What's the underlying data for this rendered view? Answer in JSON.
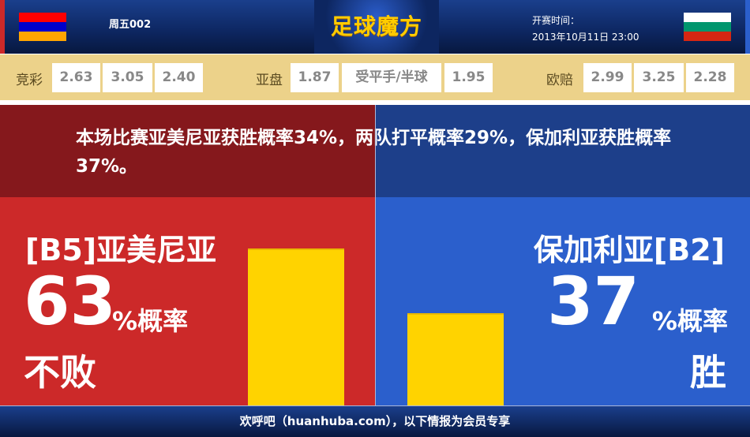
{
  "header": {
    "match_no": "周五002",
    "logo_text": "足球魔方",
    "time_label": "开赛时间：",
    "time_value": "2013年10月11日 23:00"
  },
  "flags": {
    "home": [
      "#ff0000",
      "#0000cc",
      "#ffa500"
    ],
    "away": [
      "#ffffff",
      "#00966e",
      "#d62612"
    ]
  },
  "odds": {
    "jingcai": {
      "label": "竞彩",
      "values": [
        "2.63",
        "3.05",
        "2.40"
      ]
    },
    "yapan": {
      "label": "亚盘",
      "home": "1.87",
      "handicap": "受平手/半球",
      "away": "1.95"
    },
    "ouzhou": {
      "label": "欧赔",
      "values": [
        "2.99",
        "3.25",
        "2.28"
      ]
    }
  },
  "message": "本场比赛亚美尼亚获胜概率34%，两队打平概率29%，保加利亚获胜概率37%。",
  "home": {
    "team": "[B5]亚美尼亚",
    "percent": 63,
    "percent_text": "63",
    "percent_label": "%概率",
    "result": "不败"
  },
  "away": {
    "team": "保加利亚[B2]",
    "percent": 37,
    "percent_text": "37",
    "percent_label": "%概率",
    "result": "胜"
  },
  "colors": {
    "home": "#cc2929",
    "away": "#2b5fcc",
    "bar": "#ffd300",
    "odds_band": "#ecd28a"
  },
  "footer": "欢呼吧（huanhuba.com），以下情报为会员专享"
}
